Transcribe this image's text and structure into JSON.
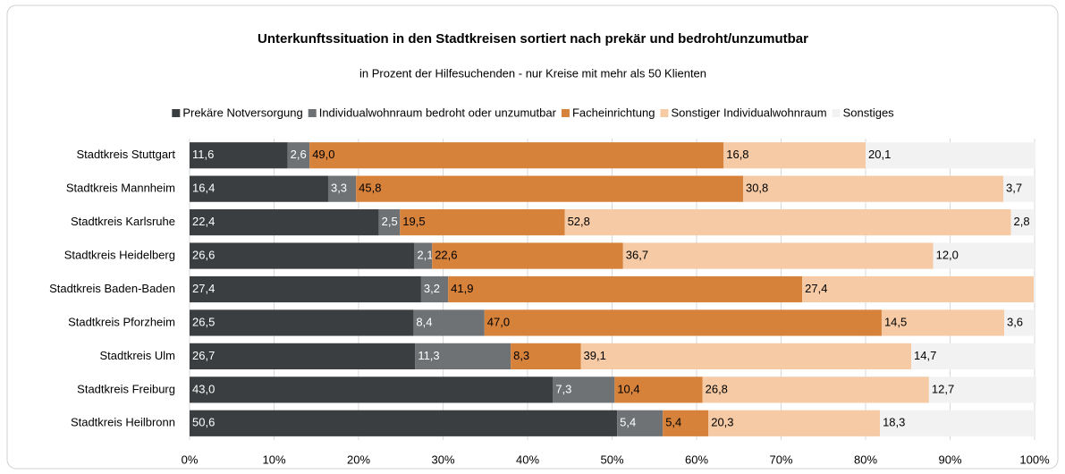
{
  "chart_data": {
    "type": "bar",
    "orientation": "horizontal",
    "stacked": true,
    "title": "Unterkunftssituation in den Stadtkreisen sortiert nach prekär und bedroht/unzumutbar",
    "subtitle": "in Prozent  der Hilfesuchenden   -   nur Kreise mit mehr als 50 Klienten",
    "categories": [
      "Stadtkreis Stuttgart",
      "Stadtkreis Mannheim",
      "Stadtkreis Karlsruhe",
      "Stadtkreis Heidelberg",
      "Stadtkreis Baden-Baden",
      "Stadtkreis Pforzheim",
      "Stadtkreis Ulm",
      "Stadtkreis Freiburg",
      "Stadtkreis Heilbronn"
    ],
    "series": [
      {
        "name": "Prekäre Notversorgung",
        "color": "#3b3e40",
        "label_color": "#ffffff",
        "values": [
          11.6,
          16.4,
          22.4,
          26.6,
          27.4,
          26.5,
          26.7,
          43.0,
          50.6
        ],
        "value_labels": [
          "11,6",
          "16,4",
          "22,4",
          "26,6",
          "27,4",
          "26,5",
          "26,7",
          "43,0",
          "50,6"
        ]
      },
      {
        "name": "Individualwohnraum bedroht oder unzumutbar",
        "color": "#6e7274",
        "label_color": "#ffffff",
        "values": [
          2.6,
          3.3,
          2.5,
          2.1,
          3.2,
          8.4,
          11.3,
          7.3,
          5.4
        ],
        "value_labels": [
          "2,6",
          "3,3",
          "2,5",
          "2,1",
          "3,2",
          "8,4",
          "11,3",
          "7,3",
          "5,4"
        ]
      },
      {
        "name": "Facheinrichtung",
        "color": "#d6823b",
        "label_color": "#000000",
        "values": [
          49.0,
          45.8,
          19.5,
          22.6,
          41.9,
          47.0,
          8.3,
          10.4,
          5.4
        ],
        "value_labels": [
          "49,0",
          "45,8",
          "19,5",
          "22,6",
          "41,9",
          "47,0",
          "8,3",
          "10,4",
          "5,4"
        ]
      },
      {
        "name": "Sonstiger Individualwohnraum",
        "color": "#f5caa4",
        "label_color": "#000000",
        "values": [
          16.8,
          30.8,
          52.8,
          36.7,
          27.4,
          14.5,
          39.1,
          26.8,
          20.3
        ],
        "value_labels": [
          "16,8",
          "30,8",
          "52,8",
          "36,7",
          "27,4",
          "14,5",
          "39,1",
          "26,8",
          "20,3"
        ]
      },
      {
        "name": "Sonstiges",
        "color": "#f2f2f2",
        "label_color": "#000000",
        "values": [
          20.1,
          3.7,
          2.8,
          12.0,
          0.1,
          3.6,
          14.7,
          12.7,
          18.3
        ],
        "value_labels": [
          "20,1",
          "3,7",
          "2,8",
          "12,0",
          null,
          "3,6",
          "14,7",
          "12,7",
          "18,3"
        ]
      }
    ],
    "xlim": [
      0,
      100
    ],
    "xticks": [
      {
        "value": 0,
        "label": "0%"
      },
      {
        "value": 10,
        "label": "10%"
      },
      {
        "value": 20,
        "label": "20%"
      },
      {
        "value": 30,
        "label": "30%"
      },
      {
        "value": 40,
        "label": "40%"
      },
      {
        "value": 50,
        "label": "50%"
      },
      {
        "value": 60,
        "label": "60%"
      },
      {
        "value": 70,
        "label": "70%"
      },
      {
        "value": 80,
        "label": "80%"
      },
      {
        "value": 90,
        "label": "90%"
      },
      {
        "value": 100,
        "label": "100%"
      }
    ],
    "grid": true,
    "legend": "top"
  }
}
